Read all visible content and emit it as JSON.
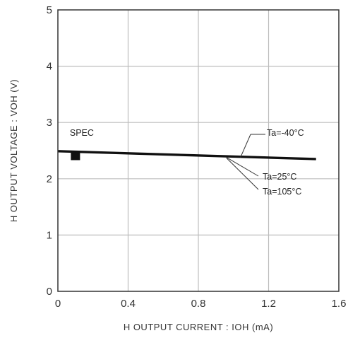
{
  "chart_data": {
    "type": "line",
    "title": "",
    "xlabel": "H  OUTPUT  CURRENT : IOH (mA)",
    "ylabel": "H  OUTPUT  VOLTAGE : VOH (V)",
    "xlim": [
      0,
      1.6
    ],
    "ylim": [
      0,
      5
    ],
    "xticks": [
      0,
      0.4,
      0.8,
      1.2,
      1.6
    ],
    "xtick_labels": [
      "0",
      "0.4",
      "0.8",
      "1.2",
      "1.6"
    ],
    "yticks": [
      0,
      1,
      2,
      3,
      4,
      5
    ],
    "ytick_labels": [
      "0",
      "1",
      "2",
      "3",
      "4",
      "5"
    ],
    "grid": true,
    "series": [
      {
        "name": "Ta=-40°C",
        "x": [
          0,
          1.47
        ],
        "y": [
          2.5,
          2.36
        ]
      },
      {
        "name": "Ta=25°C",
        "x": [
          0,
          1.47
        ],
        "y": [
          2.49,
          2.35
        ]
      },
      {
        "name": "Ta=105°C",
        "x": [
          0,
          1.47
        ],
        "y": [
          2.48,
          2.34
        ]
      }
    ],
    "spec": {
      "label": "SPEC",
      "x": 0.1,
      "y": 2.4
    },
    "annotations": [
      {
        "text": "Ta=-40°C",
        "points_to_x": 1.04,
        "points_to_y": 2.38
      },
      {
        "text": "Ta=25°C",
        "points_to_x": 0.96,
        "points_to_y": 2.38
      },
      {
        "text": "Ta=105°C",
        "points_to_x": 0.96,
        "points_to_y": 2.37
      }
    ],
    "colors": {
      "line": "#111111",
      "grid": "#bdbdbd",
      "frame": "#333333",
      "marker": "#111111"
    }
  }
}
